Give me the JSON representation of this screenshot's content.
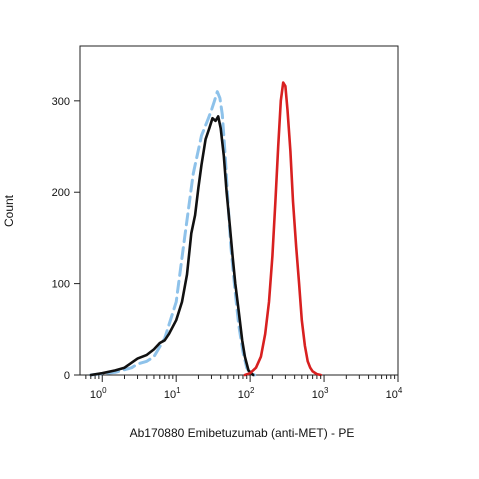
{
  "chart_data": {
    "type": "line",
    "title": "",
    "xlabel": "Ab170880 Emibetuzumab (anti-MET) - PE",
    "ylabel": "Count",
    "x_scale": "log",
    "xlim": [
      0.5,
      10000
    ],
    "ylim": [
      0,
      360
    ],
    "x_ticks": [
      {
        "base": "10",
        "exp": "0",
        "value": 1
      },
      {
        "base": "10",
        "exp": "1",
        "value": 10
      },
      {
        "base": "10",
        "exp": "2",
        "value": 100
      },
      {
        "base": "10",
        "exp": "3",
        "value": 1000
      },
      {
        "base": "10",
        "exp": "4",
        "value": 10000
      }
    ],
    "y_ticks": [
      "0",
      "100",
      "200",
      "300"
    ],
    "grid": false,
    "legend": "none",
    "series": [
      {
        "color": "#8ec2ea",
        "dash": "dashed",
        "x": [
          0.7,
          1.5,
          2.5,
          3,
          4,
          5,
          7,
          10,
          13,
          17,
          22,
          27,
          30,
          33,
          36,
          39,
          42,
          46,
          50,
          55,
          62,
          70,
          80,
          90,
          100,
          115
        ],
        "y": [
          0,
          3,
          8,
          12,
          15,
          20,
          40,
          80,
          150,
          220,
          262,
          280,
          290,
          300,
          310,
          303,
          285,
          240,
          190,
          140,
          95,
          55,
          25,
          8,
          2,
          0
        ]
      },
      {
        "color": "#111111",
        "dash": "solid",
        "x": [
          0.7,
          1,
          1.5,
          2,
          3,
          4,
          5,
          6,
          7,
          8,
          10,
          12,
          14,
          16,
          18,
          20,
          22,
          25,
          28,
          31,
          34,
          37,
          40,
          44,
          48,
          53,
          58,
          63,
          70,
          78,
          85,
          95,
          110
        ],
        "y": [
          0,
          2,
          5,
          8,
          18,
          22,
          28,
          35,
          38,
          45,
          60,
          80,
          110,
          155,
          175,
          205,
          230,
          258,
          270,
          281,
          278,
          283,
          270,
          240,
          200,
          165,
          130,
          100,
          70,
          38,
          20,
          5,
          0
        ]
      },
      {
        "color": "#d82020",
        "dash": "solid",
        "x": [
          85,
          100,
          120,
          140,
          160,
          180,
          200,
          220,
          240,
          260,
          280,
          300,
          320,
          350,
          380,
          420,
          460,
          500,
          550,
          600,
          650,
          700,
          800,
          900
        ],
        "y": [
          0,
          2,
          8,
          20,
          45,
          80,
          130,
          190,
          250,
          300,
          320,
          316,
          290,
          245,
          190,
          140,
          100,
          60,
          32,
          15,
          8,
          4,
          1,
          0
        ]
      }
    ]
  }
}
